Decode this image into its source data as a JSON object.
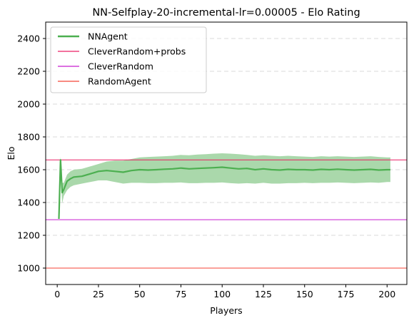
{
  "chart_data": {
    "type": "line",
    "title": "NN-Selfplay-20-incremental-lr=0.00005 - Elo Rating",
    "xlabel": "Players",
    "ylabel": "Elo",
    "xlim": [
      -7,
      212
    ],
    "ylim": [
      900,
      2500
    ],
    "x_ticks": [
      0,
      25,
      50,
      75,
      100,
      125,
      150,
      175,
      200
    ],
    "y_ticks": [
      1000,
      1200,
      1400,
      1600,
      1800,
      2000,
      2200,
      2400
    ],
    "grid": "y-dashed",
    "legend_position": "upper left",
    "series": [
      {
        "name": "NNAgent",
        "color": "#4caf50",
        "band_color": "#a5d6a7",
        "x": [
          1,
          2,
          3,
          4,
          6,
          8,
          10,
          15,
          20,
          25,
          30,
          35,
          40,
          45,
          50,
          55,
          60,
          65,
          70,
          75,
          80,
          85,
          90,
          95,
          100,
          105,
          110,
          115,
          120,
          125,
          130,
          135,
          140,
          145,
          150,
          155,
          160,
          165,
          170,
          175,
          180,
          185,
          190,
          195,
          200,
          202
        ],
        "y": [
          1300,
          1660,
          1460,
          1480,
          1530,
          1545,
          1555,
          1560,
          1575,
          1590,
          1595,
          1590,
          1585,
          1595,
          1600,
          1598,
          1600,
          1603,
          1605,
          1610,
          1605,
          1608,
          1610,
          1612,
          1615,
          1610,
          1605,
          1608,
          1600,
          1605,
          1600,
          1598,
          1602,
          1600,
          1600,
          1598,
          1602,
          1600,
          1603,
          1600,
          1598,
          1600,
          1602,
          1598,
          1600,
          1600
        ],
        "lower": [
          1295,
          1600,
          1395,
          1440,
          1475,
          1495,
          1505,
          1515,
          1525,
          1535,
          1535,
          1525,
          1515,
          1520,
          1520,
          1518,
          1518,
          1520,
          1520,
          1522,
          1518,
          1518,
          1520,
          1520,
          1522,
          1518,
          1515,
          1518,
          1515,
          1520,
          1515,
          1515,
          1518,
          1518,
          1520,
          1518,
          1520,
          1520,
          1522,
          1520,
          1518,
          1520,
          1522,
          1520,
          1525,
          1525
        ],
        "upper": [
          1310,
          1680,
          1520,
          1520,
          1570,
          1590,
          1600,
          1605,
          1620,
          1635,
          1650,
          1655,
          1655,
          1665,
          1675,
          1678,
          1680,
          1682,
          1685,
          1690,
          1688,
          1692,
          1695,
          1698,
          1700,
          1698,
          1695,
          1690,
          1685,
          1688,
          1685,
          1682,
          1685,
          1682,
          1680,
          1678,
          1682,
          1680,
          1682,
          1680,
          1678,
          1680,
          1682,
          1678,
          1675,
          1675
        ]
      },
      {
        "name": "CleverRandom+probs",
        "color": "#e91e63",
        "kind": "hline",
        "value": 1660
      },
      {
        "name": "CleverRandom",
        "color": "#c71ccf",
        "kind": "hline",
        "value": 1295
      },
      {
        "name": "RandomAgent",
        "color": "#f44336",
        "kind": "hline",
        "value": 1000
      }
    ]
  }
}
